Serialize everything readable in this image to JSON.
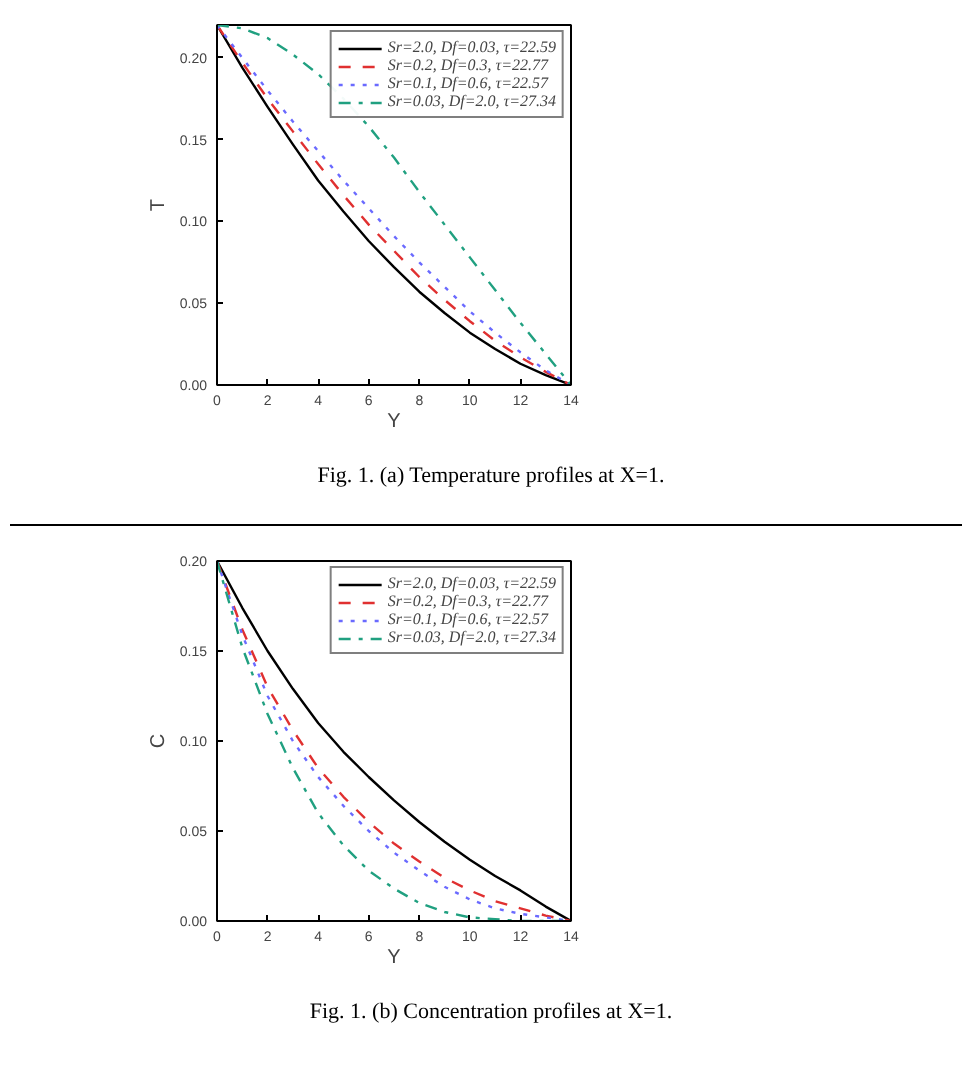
{
  "chart_data": [
    {
      "type": "line",
      "xlabel": "Y",
      "ylabel": "T",
      "annotations": [
        "Fig. 1. (a) Temperature profiles at X=1."
      ],
      "legend": "top right",
      "grid": false,
      "xlim": [
        0,
        14
      ],
      "ylim": [
        0,
        0.22
      ],
      "xticks": [
        0,
        2,
        4,
        6,
        8,
        10,
        12,
        14
      ],
      "yticks": [
        {
          "value": 0,
          "label": "0.00"
        },
        {
          "value": 0.05,
          "label": "0.05"
        },
        {
          "value": 0.1,
          "label": "0.10"
        },
        {
          "value": 0.15,
          "label": "0.15"
        },
        {
          "value": 0.2,
          "label": "0.20"
        }
      ],
      "x": [
        0,
        1,
        2,
        3,
        4,
        5,
        6,
        7,
        8,
        9,
        10,
        11,
        12,
        13,
        14
      ],
      "series": [
        {
          "name": "Sr=2.0, Df=0.03, τ=22.59",
          "color": "#000000",
          "line_style": "solid",
          "values": [
            0.22,
            0.194,
            0.17,
            0.147,
            0.125,
            0.106,
            0.088,
            0.072,
            0.057,
            0.044,
            0.032,
            0.022,
            0.013,
            0.006,
            0
          ]
        },
        {
          "name": "Sr=0.2, Df=0.3, τ=22.77",
          "color": "#e03030",
          "line_style": "dashed",
          "values": [
            0.22,
            0.197,
            0.175,
            0.155,
            0.135,
            0.116,
            0.098,
            0.082,
            0.066,
            0.052,
            0.039,
            0.027,
            0.017,
            0.008,
            0
          ]
        },
        {
          "name": "Sr=0.1, Df=0.6, τ=22.57",
          "color": "#6a6aff",
          "line_style": "dotted",
          "values": [
            0.22,
            0.2,
            0.18,
            0.161,
            0.143,
            0.125,
            0.108,
            0.091,
            0.075,
            0.06,
            0.045,
            0.032,
            0.02,
            0.009,
            0
          ]
        },
        {
          "name": "Sr=0.03, Df=2.0, τ=27.34",
          "color": "#20a080",
          "line_style": "dashdot",
          "values": [
            0.22,
            0.218,
            0.212,
            0.202,
            0.19,
            0.175,
            0.158,
            0.139,
            0.118,
            0.098,
            0.078,
            0.058,
            0.038,
            0.019,
            0
          ]
        }
      ]
    },
    {
      "type": "line",
      "xlabel": "Y",
      "ylabel": "C",
      "annotations": [
        "Fig. 1. (b) Concentration profiles at X=1."
      ],
      "legend": "top right",
      "grid": false,
      "xlim": [
        0,
        14
      ],
      "ylim": [
        0,
        0.2
      ],
      "xticks": [
        0,
        2,
        4,
        6,
        8,
        10,
        12,
        14
      ],
      "yticks": [
        {
          "value": 0,
          "label": "0.00"
        },
        {
          "value": 0.05,
          "label": "0.05"
        },
        {
          "value": 0.1,
          "label": "0.10"
        },
        {
          "value": 0.15,
          "label": "0.15"
        },
        {
          "value": 0.2,
          "label": "0.20"
        }
      ],
      "x": [
        0,
        1,
        2,
        3,
        4,
        5,
        6,
        7,
        8,
        9,
        10,
        11,
        12,
        13,
        14
      ],
      "series": [
        {
          "name": "Sr=2.0, Df=0.03, τ=22.59",
          "color": "#000000",
          "line_style": "solid",
          "values": [
            0.2,
            0.174,
            0.15,
            0.129,
            0.11,
            0.094,
            0.08,
            0.067,
            0.055,
            0.044,
            0.034,
            0.025,
            0.017,
            0.008,
            0
          ]
        },
        {
          "name": "Sr=0.2, Df=0.3, τ=22.77",
          "color": "#e03030",
          "line_style": "dashed",
          "values": [
            0.2,
            0.162,
            0.13,
            0.106,
            0.085,
            0.069,
            0.055,
            0.043,
            0.033,
            0.024,
            0.017,
            0.011,
            0.007,
            0.003,
            0
          ]
        },
        {
          "name": "Sr=0.1, Df=0.6, τ=22.57",
          "color": "#6a6aff",
          "line_style": "dotted",
          "values": [
            0.2,
            0.159,
            0.125,
            0.1,
            0.08,
            0.064,
            0.05,
            0.038,
            0.028,
            0.019,
            0.012,
            0.007,
            0.004,
            0.002,
            0
          ]
        },
        {
          "name": "Sr=0.03, Df=2.0, τ=27.34",
          "color": "#20a080",
          "line_style": "dashdot",
          "values": [
            0.2,
            0.152,
            0.115,
            0.085,
            0.06,
            0.042,
            0.028,
            0.018,
            0.01,
            0.005,
            0.002,
            0.001,
            0,
            0,
            0
          ]
        }
      ]
    }
  ]
}
